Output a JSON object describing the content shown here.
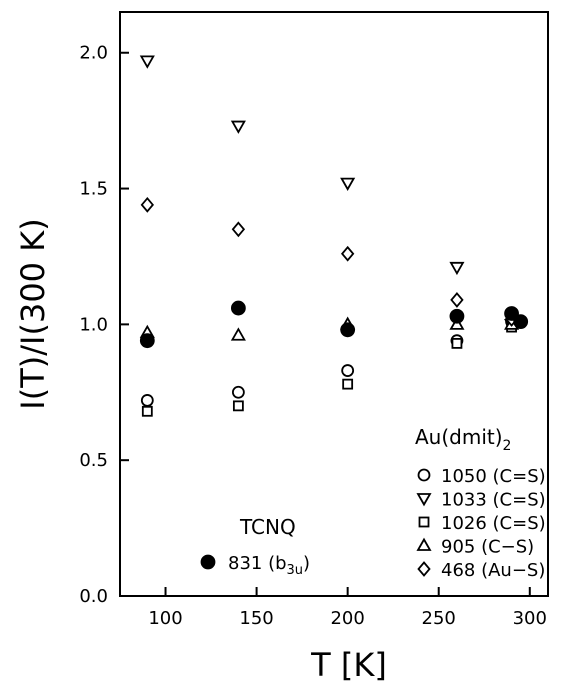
{
  "chart_data": {
    "type": "scatter",
    "xlabel": "T [K]",
    "ylabel": "I(T)/I(300 K)",
    "xlim": [
      75,
      310
    ],
    "ylim": [
      0.0,
      2.15
    ],
    "x_ticks": [
      100,
      150,
      200,
      250,
      300
    ],
    "y_ticks": [
      0.0,
      0.5,
      1.0,
      1.5,
      2.0
    ],
    "x_tick_labels": [
      "100",
      "150",
      "200",
      "250",
      "300"
    ],
    "y_tick_labels": [
      "0.0",
      "0.5",
      "1.0",
      "1.5",
      "2.0"
    ],
    "grid": false,
    "legend_groups": [
      {
        "title": "Au(dmit)",
        "title_subscript": "2",
        "placement": "bottom-right",
        "entries": [
          0,
          1,
          2,
          3,
          4
        ]
      },
      {
        "title": "TCNQ",
        "title_subscript": "",
        "placement": "bottom-center",
        "entries": [
          5
        ]
      }
    ],
    "series": [
      {
        "name": "1050 (C=S)",
        "legend_label": "1050 (C=S)",
        "legend_subscript": "",
        "legend_suffix": "",
        "marker": "circle-open",
        "points": [
          {
            "x": 90,
            "y": 0.72
          },
          {
            "x": 140,
            "y": 0.75
          },
          {
            "x": 200,
            "y": 0.83
          },
          {
            "x": 260,
            "y": 0.94
          },
          {
            "x": 290,
            "y": 1.01
          }
        ]
      },
      {
        "name": "1033 (C=S)",
        "legend_label": "1033 (C=S)",
        "legend_subscript": "",
        "legend_suffix": "",
        "marker": "triangle-down-open",
        "points": [
          {
            "x": 90,
            "y": 1.97
          },
          {
            "x": 140,
            "y": 1.73
          },
          {
            "x": 200,
            "y": 1.52
          },
          {
            "x": 260,
            "y": 1.21
          },
          {
            "x": 290,
            "y": 1.0
          }
        ]
      },
      {
        "name": "1026 (C=S)",
        "legend_label": "1026 (C=S)",
        "legend_subscript": "",
        "legend_suffix": "",
        "marker": "square-open",
        "points": [
          {
            "x": 90,
            "y": 0.68
          },
          {
            "x": 140,
            "y": 0.7
          },
          {
            "x": 200,
            "y": 0.78
          },
          {
            "x": 260,
            "y": 0.93
          },
          {
            "x": 290,
            "y": 0.99
          }
        ]
      },
      {
        "name": "905 (C-S)",
        "legend_label": "905 (C−S)",
        "legend_subscript": "",
        "legend_suffix": "",
        "marker": "triangle-up-open",
        "points": [
          {
            "x": 90,
            "y": 0.97
          },
          {
            "x": 140,
            "y": 0.96
          },
          {
            "x": 200,
            "y": 1.0
          },
          {
            "x": 260,
            "y": 1.0
          },
          {
            "x": 290,
            "y": 1.0
          }
        ]
      },
      {
        "name": "468 (Au-S)",
        "legend_label": "468 (Au−S)",
        "legend_subscript": "",
        "legend_suffix": "",
        "marker": "diamond-open",
        "points": [
          {
            "x": 90,
            "y": 1.44
          },
          {
            "x": 140,
            "y": 1.35
          },
          {
            "x": 200,
            "y": 1.26
          },
          {
            "x": 260,
            "y": 1.09
          },
          {
            "x": 290,
            "y": 1.02
          }
        ]
      },
      {
        "name": "831 (b3u)",
        "legend_label": "831 (b",
        "legend_subscript": "3u",
        "legend_suffix": ")",
        "marker": "circle-filled",
        "points": [
          {
            "x": 90,
            "y": 0.94
          },
          {
            "x": 140,
            "y": 1.06
          },
          {
            "x": 200,
            "y": 0.98
          },
          {
            "x": 260,
            "y": 1.03
          },
          {
            "x": 290,
            "y": 1.04
          },
          {
            "x": 295,
            "y": 1.01
          }
        ]
      }
    ]
  }
}
